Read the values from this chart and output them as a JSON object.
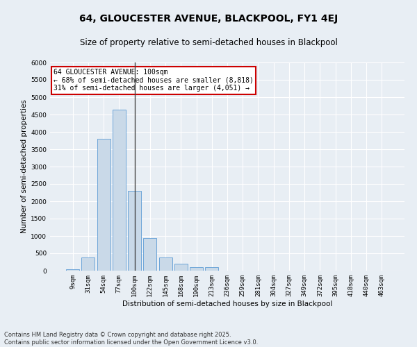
{
  "title": "64, GLOUCESTER AVENUE, BLACKPOOL, FY1 4EJ",
  "subtitle": "Size of property relative to semi-detached houses in Blackpool",
  "xlabel": "Distribution of semi-detached houses by size in Blackpool",
  "ylabel": "Number of semi-detached properties",
  "footnote": "Contains HM Land Registry data © Crown copyright and database right 2025.\nContains public sector information licensed under the Open Government Licence v3.0.",
  "bar_labels": [
    "9sqm",
    "31sqm",
    "54sqm",
    "77sqm",
    "100sqm",
    "122sqm",
    "145sqm",
    "168sqm",
    "190sqm",
    "213sqm",
    "236sqm",
    "259sqm",
    "281sqm",
    "304sqm",
    "327sqm",
    "349sqm",
    "372sqm",
    "395sqm",
    "418sqm",
    "440sqm",
    "463sqm"
  ],
  "bar_values": [
    50,
    390,
    3800,
    4650,
    2300,
    950,
    390,
    200,
    100,
    100,
    0,
    0,
    0,
    0,
    0,
    0,
    0,
    0,
    0,
    0,
    0
  ],
  "bar_color": "#c9d9e8",
  "bar_edge_color": "#5b9bd5",
  "property_size_index": 4,
  "annotation_title": "64 GLOUCESTER AVENUE: 100sqm",
  "annotation_line1": "← 68% of semi-detached houses are smaller (8,818)",
  "annotation_line2": "31% of semi-detached houses are larger (4,051) →",
  "annotation_box_color": "#ffffff",
  "annotation_box_edge": "#cc0000",
  "vline_color": "#444444",
  "ylim": [
    0,
    6000
  ],
  "yticks": [
    0,
    500,
    1000,
    1500,
    2000,
    2500,
    3000,
    3500,
    4000,
    4500,
    5000,
    5500,
    6000
  ],
  "bg_color": "#e8eef4",
  "plot_bg_color": "#e8eef4",
  "grid_color": "#ffffff",
  "title_fontsize": 10,
  "subtitle_fontsize": 8.5,
  "axis_label_fontsize": 7.5,
  "tick_fontsize": 6.5,
  "annotation_fontsize": 7,
  "footnote_fontsize": 6
}
